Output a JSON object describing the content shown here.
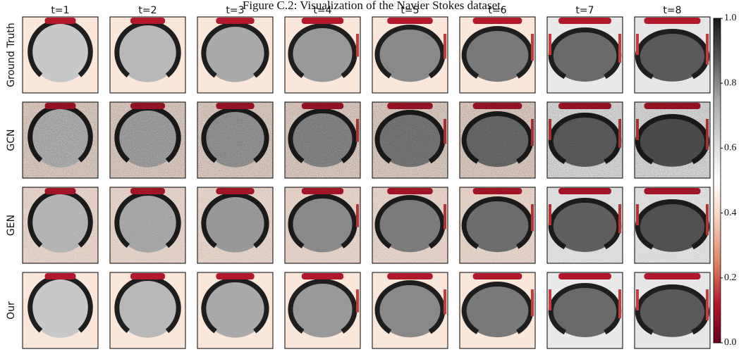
{
  "header": {
    "title": "Figure C.2: Visualization of the Navier Stokes dataset."
  },
  "columns": [
    "t=1",
    "t=2",
    "t=3",
    "t=4",
    "t=5",
    "t=6",
    "t=7",
    "t=8"
  ],
  "rows": [
    "Ground Truth",
    "GCN",
    "GEN",
    "Our"
  ],
  "colorbar": {
    "lim": [
      0,
      1
    ],
    "ticks": [
      {
        "value": 0,
        "label": "0.0"
      },
      {
        "value": 0.2,
        "label": "0.2"
      },
      {
        "value": 0.4,
        "label": "0.4"
      },
      {
        "value": 0.6,
        "label": "0.6"
      },
      {
        "value": 0.8,
        "label": "0.8"
      },
      {
        "value": 1,
        "label": "1.0"
      }
    ]
  }
}
